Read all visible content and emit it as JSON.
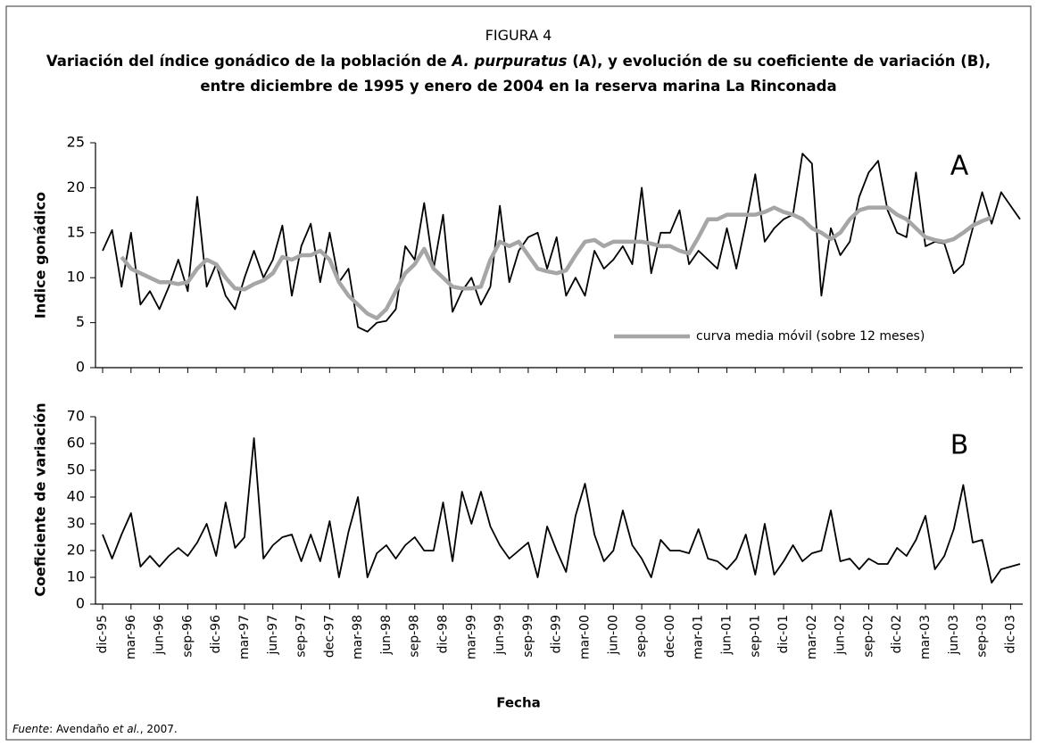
{
  "figure_label": "FIGURA 4",
  "title": [
    "Variación del índice gonádico de la población de ",
    "A. purpuratus",
    " (A), y evolución de su coeficiente de variación (B), entre diciembre de 1995 y enero de 2004 en la reserva marina La Rinconada"
  ],
  "source": [
    "Fuente",
    ": Avendaño ",
    "et al.",
    ", 2007."
  ],
  "chart_data": [
    {
      "type": "line",
      "ylabel": "Indice gonádico",
      "annotation": "A",
      "x": [
        "1995-12",
        "1996-01",
        "1996-02",
        "1996-03",
        "1996-04",
        "1996-05",
        "1996-06",
        "1996-07",
        "1996-08",
        "1996-09",
        "1996-10",
        "1996-11",
        "1996-12",
        "1997-01",
        "1997-02",
        "1997-03",
        "1997-04",
        "1997-05",
        "1997-06",
        "1997-07",
        "1997-08",
        "1997-09",
        "1997-10",
        "1997-11",
        "1997-12",
        "1998-01",
        "1998-02",
        "1998-03",
        "1998-04",
        "1998-05",
        "1998-06",
        "1998-07",
        "1998-08",
        "1998-09",
        "1998-10",
        "1998-11",
        "1998-12",
        "1999-01",
        "1999-02",
        "1999-03",
        "1999-04",
        "1999-05",
        "1999-06",
        "1999-07",
        "1999-08",
        "1999-09",
        "1999-10",
        "1999-11",
        "1999-12",
        "2000-01",
        "2000-02",
        "2000-03",
        "2000-04",
        "2000-05",
        "2000-06",
        "2000-07",
        "2000-08",
        "2000-09",
        "2000-10",
        "2000-11",
        "2000-12",
        "2001-01",
        "2001-02",
        "2001-03",
        "2001-04",
        "2001-05",
        "2001-06",
        "2001-07",
        "2001-08",
        "2001-09",
        "2001-10",
        "2001-11",
        "2001-12",
        "2002-01",
        "2002-02",
        "2002-03",
        "2002-04",
        "2002-05",
        "2002-06",
        "2002-07",
        "2002-08",
        "2002-09",
        "2002-10",
        "2002-11",
        "2002-12",
        "2003-01",
        "2003-02",
        "2003-03",
        "2003-04",
        "2003-05",
        "2003-06",
        "2003-07",
        "2003-08",
        "2003-09",
        "2003-10",
        "2003-11",
        "2003-12",
        "2004-01"
      ],
      "series": [
        {
          "color": "#000000",
          "values": [
            13,
            15.3,
            9,
            15,
            7,
            8.5,
            6.5,
            9,
            12,
            8.5,
            19,
            9,
            11.5,
            8,
            6.5,
            10,
            13,
            10,
            12,
            15.8,
            8,
            13.5,
            16,
            9.5,
            15,
            9.5,
            11,
            4.5,
            4,
            5,
            5.2,
            6.5,
            13.5,
            12,
            18.3,
            11,
            17,
            6.2,
            8.5,
            10,
            7,
            9,
            18,
            9.5,
            13,
            14.5,
            15,
            11,
            14.5,
            8,
            10,
            8,
            13,
            11,
            12,
            13.5,
            11.5,
            20,
            10.5,
            15,
            15,
            17.5,
            11.5,
            13,
            12,
            11,
            15.5,
            11,
            16,
            21.5,
            14,
            15.5,
            16.5,
            17,
            23.8,
            22.7,
            8,
            15.5,
            12.5,
            14,
            19,
            21.7,
            23,
            17.5,
            15,
            14.5,
            21.7,
            13.5,
            14,
            13.8,
            10.5,
            11.5,
            15.5,
            19.5,
            16,
            19.5,
            18,
            16.5
          ]
        },
        {
          "name": "curva media móvil (sobre 12 meses)",
          "color": "#a6a6a6",
          "values": [
            null,
            null,
            12.3,
            11,
            10.5,
            10,
            9.5,
            9.5,
            9.3,
            9.5,
            11,
            12,
            11.5,
            10,
            8.8,
            8.7,
            9.3,
            9.7,
            10.5,
            12.3,
            12,
            12.5,
            12.5,
            13,
            12,
            9.5,
            8,
            7,
            6,
            5.5,
            6.5,
            8.5,
            10.5,
            11.5,
            13.2,
            11,
            10,
            9,
            8.8,
            8.8,
            9,
            12,
            14,
            13.5,
            14,
            12.5,
            11,
            10.7,
            10.5,
            10.8,
            12.5,
            14,
            14.2,
            13.5,
            14,
            14,
            14,
            14,
            13.8,
            13.5,
            13.5,
            13,
            12.7,
            14.5,
            16.5,
            16.5,
            17,
            17,
            17,
            17,
            17.3,
            17.8,
            17.3,
            17,
            16.5,
            15.5,
            15,
            14.3,
            15,
            16.5,
            17.5,
            17.8,
            17.8,
            17.8,
            17,
            16.5,
            15.5,
            14.5,
            14.2,
            14,
            14.3,
            15,
            15.8,
            16.3,
            16.7,
            null,
            null,
            null
          ]
        }
      ],
      "ylim": [
        0,
        25
      ],
      "yticks": [
        0,
        5,
        10,
        15,
        20,
        25
      ]
    },
    {
      "type": "line",
      "ylabel": "Coeficiente de variación",
      "annotation": "B",
      "xlabel": "Fecha",
      "series": [
        {
          "color": "#000000",
          "values": [
            26,
            17,
            26,
            34,
            14,
            18,
            14,
            18,
            21,
            18,
            23,
            30,
            18,
            38,
            21,
            25,
            62,
            17,
            22,
            25,
            26,
            16,
            26,
            16,
            31,
            10,
            27,
            40,
            10,
            19,
            22,
            17,
            22,
            25,
            20,
            20,
            38,
            16,
            42,
            30,
            42,
            29,
            22,
            17,
            20,
            23,
            10,
            29,
            20,
            12,
            33,
            45,
            26,
            16,
            20,
            35,
            22,
            17,
            10,
            24,
            20,
            20,
            19,
            28,
            17,
            16,
            13,
            17,
            26,
            11,
            30,
            11,
            16,
            22,
            16,
            19,
            20,
            35,
            16,
            17,
            13,
            17,
            15,
            15,
            21,
            18,
            24,
            33,
            13,
            18,
            28,
            44.5,
            23,
            24,
            8,
            13,
            14,
            15
          ]
        }
      ],
      "ylim": [
        0,
        70
      ],
      "yticks": [
        0,
        10,
        20,
        30,
        40,
        50,
        60,
        70
      ],
      "xticks": [
        {
          "value": "1995-12",
          "label": "dic-95"
        },
        {
          "value": "1996-03",
          "label": "mar-96"
        },
        {
          "value": "1996-06",
          "label": "jun-96"
        },
        {
          "value": "1996-09",
          "label": "sep-96"
        },
        {
          "value": "1996-12",
          "label": "dic-96"
        },
        {
          "value": "1997-03",
          "label": "mar-97"
        },
        {
          "value": "1997-06",
          "label": "jun-97"
        },
        {
          "value": "1997-09",
          "label": "sep-97"
        },
        {
          "value": "1997-12",
          "label": "dec-97"
        },
        {
          "value": "1998-03",
          "label": "mar-98"
        },
        {
          "value": "1998-06",
          "label": "jun-98"
        },
        {
          "value": "1998-09",
          "label": "sep-98"
        },
        {
          "value": "1998-12",
          "label": "dic-98"
        },
        {
          "value": "1999-03",
          "label": "mar-99"
        },
        {
          "value": "1999-06",
          "label": "jun-99"
        },
        {
          "value": "1999-09",
          "label": "sep-99"
        },
        {
          "value": "1999-12",
          "label": "dic-99"
        },
        {
          "value": "2000-03",
          "label": "mar-00"
        },
        {
          "value": "2000-06",
          "label": "jun-00"
        },
        {
          "value": "2000-09",
          "label": "sep-00"
        },
        {
          "value": "2000-12",
          "label": "dec-00"
        },
        {
          "value": "2001-03",
          "label": "mar-01"
        },
        {
          "value": "2001-06",
          "label": "jun-01"
        },
        {
          "value": "2001-09",
          "label": "sep-01"
        },
        {
          "value": "2001-12",
          "label": "dic-01"
        },
        {
          "value": "2002-03",
          "label": "mar-02"
        },
        {
          "value": "2002-06",
          "label": "jun-02"
        },
        {
          "value": "2002-09",
          "label": "sep-02"
        },
        {
          "value": "2002-12",
          "label": "dic-02"
        },
        {
          "value": "2003-03",
          "label": "mar-03"
        },
        {
          "value": "2003-06",
          "label": "jun-03"
        },
        {
          "value": "2003-09",
          "label": "sep-03"
        },
        {
          "value": "2003-12",
          "label": "dic-03"
        }
      ]
    }
  ]
}
